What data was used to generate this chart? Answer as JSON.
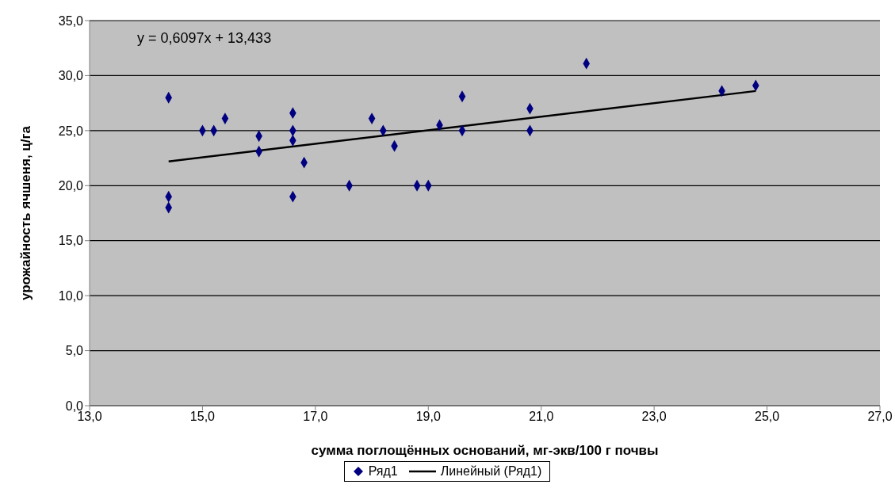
{
  "chart_data": {
    "type": "scatter",
    "xlabel": "сумма поглощённых оснований, мг-экв/100 г почвы",
    "ylabel": "урожайность ячшеня, ц/га",
    "annotations": [
      "y = 0,6097x + 13,433"
    ],
    "x": [
      14.4,
      14.4,
      14.4,
      15.0,
      15.2,
      15.4,
      16.0,
      16.0,
      16.6,
      16.6,
      16.6,
      16.6,
      16.8,
      17.6,
      18.0,
      18.2,
      18.4,
      18.8,
      19.0,
      19.2,
      19.6,
      19.6,
      20.8,
      20.8,
      21.8,
      24.2,
      24.8
    ],
    "series": [
      {
        "name": "Ряд1",
        "color": "#000080",
        "marker": "diamond",
        "values": [
          28.0,
          19.0,
          18.0,
          25.0,
          25.0,
          26.1,
          24.5,
          23.1,
          26.6,
          25.0,
          24.1,
          19.0,
          22.1,
          20.0,
          26.1,
          25.0,
          23.6,
          20.0,
          20.0,
          25.5,
          28.1,
          25.0,
          27.0,
          25.0,
          31.1,
          28.6,
          29.1
        ]
      },
      {
        "name": "Линейный (Ряд1)",
        "type": "line",
        "color": "#000000",
        "marker": "none",
        "line_style": "solid",
        "x": [
          14.4,
          24.8
        ],
        "values": [
          22.2,
          28.6
        ]
      }
    ],
    "xlim": [
      13,
      27
    ],
    "xticks": [
      {
        "value": 13,
        "label": "13,0"
      },
      {
        "value": 15,
        "label": "15,0"
      },
      {
        "value": 17,
        "label": "17,0"
      },
      {
        "value": 19,
        "label": "19,0"
      },
      {
        "value": 21,
        "label": "21,0"
      },
      {
        "value": 23,
        "label": "23,0"
      },
      {
        "value": 25,
        "label": "25,0"
      },
      {
        "value": 27,
        "label": "27,0"
      }
    ],
    "ylim": [
      0,
      35
    ],
    "yticks": [
      {
        "value": 0,
        "label": "0,0"
      },
      {
        "value": 5,
        "label": "5,0"
      },
      {
        "value": 10,
        "label": "10,0"
      },
      {
        "value": 15,
        "label": "15,0"
      },
      {
        "value": 20,
        "label": "20,0"
      },
      {
        "value": 25,
        "label": "25,0"
      },
      {
        "value": 30,
        "label": "30,0"
      },
      {
        "value": 35,
        "label": "35,0"
      }
    ],
    "grid": "y",
    "legend": "bottom"
  }
}
